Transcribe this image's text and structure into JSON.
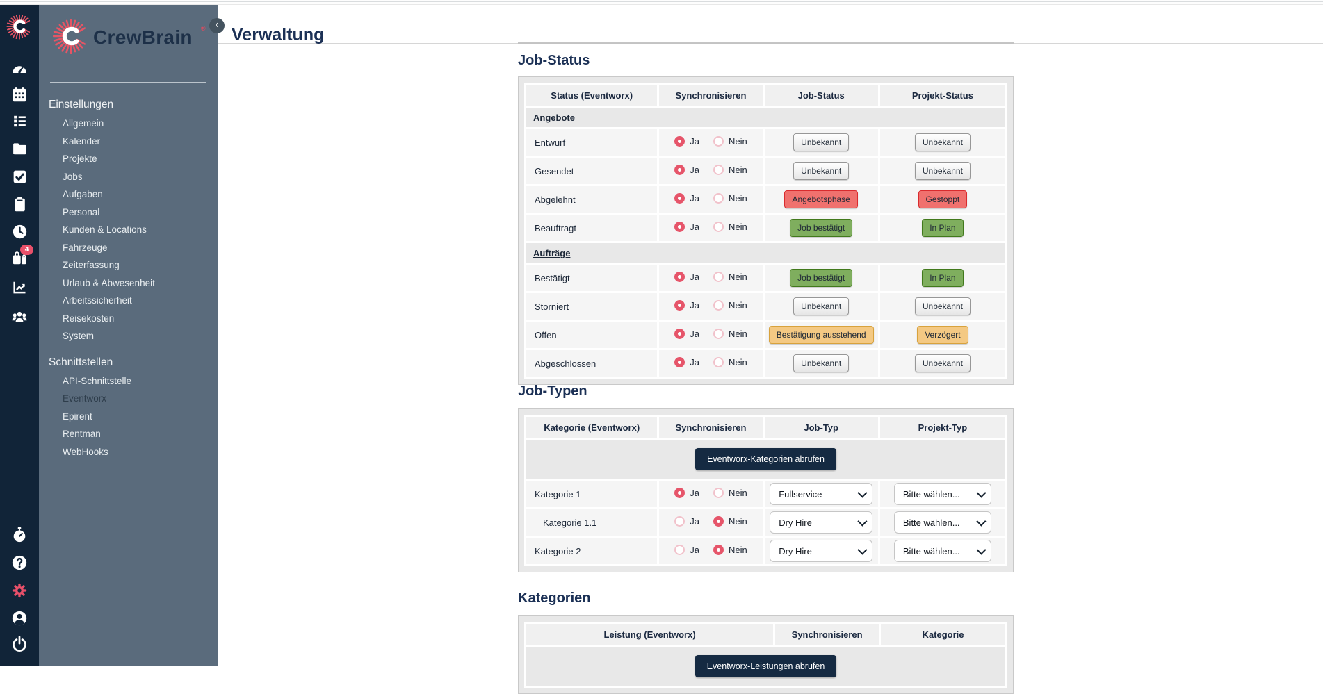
{
  "app": {
    "logo_text": "CrewBrain",
    "logo_reg": "®",
    "collapse_glyph": "‹",
    "accent_red": "#e8506a",
    "rail_color": "#112438",
    "sidebar_color": "#5a6b7c",
    "navy": "#1b3055"
  },
  "header": {
    "title": "Verwaltung"
  },
  "rail": {
    "top_icons": [
      {
        "icon": "logo",
        "name": "crewbrain-logo-icon"
      },
      {
        "icon": "gauge",
        "name": "dashboard-icon"
      },
      {
        "icon": "calendar",
        "name": "calendar-icon"
      },
      {
        "icon": "list",
        "name": "planning-list-icon"
      },
      {
        "icon": "folder",
        "name": "projects-folder-icon"
      },
      {
        "icon": "check",
        "name": "jobs-check-icon"
      },
      {
        "icon": "clipboard",
        "name": "tasks-clipboard-icon"
      },
      {
        "icon": "clock",
        "name": "time-tracking-clock-icon"
      },
      {
        "icon": "bags",
        "name": "workload-bags-icon",
        "badge": "4"
      },
      {
        "icon": "chart",
        "name": "statistics-chart-icon"
      },
      {
        "icon": "users",
        "name": "personnel-users-icon"
      }
    ],
    "bottom_icons": [
      {
        "icon": "stopwatch",
        "name": "stopwatch-timer-icon"
      },
      {
        "icon": "help",
        "name": "help-icon"
      },
      {
        "icon": "gear",
        "name": "settings-gear-icon",
        "active": true
      },
      {
        "icon": "account",
        "name": "account-user-icon"
      },
      {
        "icon": "power",
        "name": "logout-power-icon"
      }
    ]
  },
  "sidebar": {
    "sections": [
      {
        "title": "Einstellungen",
        "items": [
          {
            "label": "Allgemein"
          },
          {
            "label": "Kalender"
          },
          {
            "label": "Projekte"
          },
          {
            "label": "Jobs"
          },
          {
            "label": "Aufgaben"
          },
          {
            "label": "Personal"
          },
          {
            "label": "Kunden & Locations"
          },
          {
            "label": "Fahrzeuge"
          },
          {
            "label": "Zeiterfassung"
          },
          {
            "label": "Urlaub & Abwesenheit"
          },
          {
            "label": "Arbeitssicherheit"
          },
          {
            "label": "Reisekosten"
          },
          {
            "label": "System"
          }
        ]
      },
      {
        "title": "Schnittstellen",
        "items": [
          {
            "label": "API-Schnittstelle"
          },
          {
            "label": "Eventworx",
            "active": true
          },
          {
            "label": "Epirent"
          },
          {
            "label": "Rentman"
          },
          {
            "label": "WebHooks"
          }
        ]
      }
    ]
  },
  "radio_labels": {
    "ja": "Ja",
    "nein": "Nein"
  },
  "sections": [
    {
      "id": "job-status",
      "heading": "Job-Status",
      "headers": [
        "Status (Eventworx)",
        "Synchronisieren",
        "Job-Status",
        "Projekt-Status"
      ],
      "col_widths": [
        "27.7%",
        "21.8%",
        "24.0%",
        "26.5%"
      ],
      "rows": [
        {
          "type": "group",
          "label": "Angebote"
        },
        {
          "type": "status",
          "label": "Entwurf",
          "sync": "ja",
          "job_status": {
            "label": "Unbekannt",
            "style": "gray"
          },
          "projekt_status": {
            "label": "Unbekannt",
            "style": "gray"
          }
        },
        {
          "type": "status",
          "label": "Gesendet",
          "sync": "ja",
          "job_status": {
            "label": "Unbekannt",
            "style": "gray"
          },
          "projekt_status": {
            "label": "Unbekannt",
            "style": "gray"
          }
        },
        {
          "type": "status",
          "label": "Abgelehnt",
          "sync": "ja",
          "job_status": {
            "label": "Angebotsphase",
            "style": "red"
          },
          "projekt_status": {
            "label": "Gestoppt",
            "style": "red"
          }
        },
        {
          "type": "status",
          "label": "Beauftragt",
          "sync": "ja",
          "job_status": {
            "label": "Job bestätigt",
            "style": "green"
          },
          "projekt_status": {
            "label": "In Plan",
            "style": "green"
          }
        },
        {
          "type": "group",
          "label": "Aufträge"
        },
        {
          "type": "status",
          "label": "Bestätigt",
          "sync": "ja",
          "job_status": {
            "label": "Job bestätigt",
            "style": "green"
          },
          "projekt_status": {
            "label": "In Plan",
            "style": "green"
          }
        },
        {
          "type": "status",
          "label": "Storniert",
          "sync": "ja",
          "job_status": {
            "label": "Unbekannt",
            "style": "gray"
          },
          "projekt_status": {
            "label": "Unbekannt",
            "style": "gray"
          }
        },
        {
          "type": "status",
          "label": "Offen",
          "sync": "ja",
          "job_status": {
            "label": "Bestätigung ausstehend",
            "style": "orange"
          },
          "projekt_status": {
            "label": "Verzögert",
            "style": "orange"
          }
        },
        {
          "type": "status",
          "label": "Abgeschlossen",
          "sync": "ja",
          "job_status": {
            "label": "Unbekannt",
            "style": "gray"
          },
          "projekt_status": {
            "label": "Unbekannt",
            "style": "gray"
          }
        }
      ]
    },
    {
      "id": "job-typen",
      "heading": "Job-Typen",
      "headers": [
        "Kategorie (Eventworx)",
        "Synchronisieren",
        "Job-Typ",
        "Projekt-Typ"
      ],
      "col_widths": [
        "27.7%",
        "21.8%",
        "24.0%",
        "26.5%"
      ],
      "rows": [
        {
          "type": "action",
          "button_label": "Eventworx-Kategorien abrufen"
        },
        {
          "type": "mapping",
          "label": "Kategorie 1",
          "indent": false,
          "sync": "ja",
          "job_typ": "Fullservice",
          "projekt_typ": "Bitte wählen..."
        },
        {
          "type": "mapping",
          "label": "Kategorie 1.1",
          "indent": true,
          "sync": "nein",
          "job_typ": "Dry Hire",
          "projekt_typ": "Bitte wählen..."
        },
        {
          "type": "mapping",
          "label": "Kategorie 2",
          "indent": false,
          "sync": "nein",
          "job_typ": "Dry Hire",
          "projekt_typ": "Bitte wählen..."
        }
      ]
    },
    {
      "id": "kategorien",
      "heading": "Kategorien",
      "headers": [
        "Leistung (Eventworx)",
        "Synchronisieren",
        "Kategorie"
      ],
      "col_widths": [
        "52.0%",
        "21.8%",
        "26.2%"
      ],
      "rows": [
        {
          "type": "action",
          "button_label": "Eventworx-Leistungen abrufen"
        }
      ]
    }
  ]
}
